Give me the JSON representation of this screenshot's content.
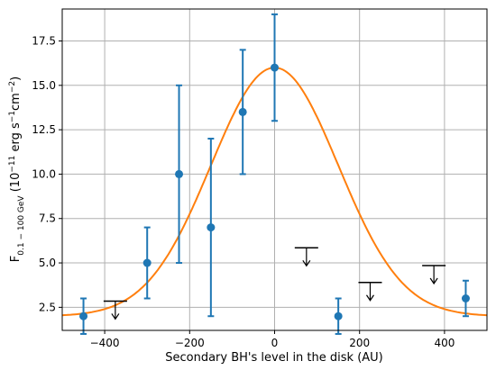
{
  "chart_data": {
    "type": "scatter",
    "title": "",
    "xlabel": "Secondary BH's level in the disk (AU)",
    "ylabel": {
      "main": "F",
      "sub": "0.1 − 100 GeV",
      "unit_prefix": " (10",
      "unit_exp": "−11",
      "unit_mid": " erg s",
      "unit_exp2": "−1",
      "unit_mid2": "cm",
      "unit_exp3": "−2",
      "unit_suffix": ")"
    },
    "xlim": [
      -500,
      500
    ],
    "ylim": [
      1.2,
      19.3
    ],
    "grid": true,
    "xticks": [
      -400,
      -200,
      0,
      200,
      400
    ],
    "xtick_labels": [
      "−400",
      "−200",
      "0",
      "200",
      "400"
    ],
    "yticks": [
      2.5,
      5.0,
      7.5,
      10.0,
      12.5,
      15.0,
      17.5
    ],
    "ytick_labels": [
      "2.5",
      "5.0",
      "7.5",
      "10.0",
      "12.5",
      "15.0",
      "17.5"
    ],
    "colors": {
      "points": "#1f77b4",
      "fit": "#ff7f0e",
      "limits": "#000000",
      "grid": "#b0b0b0"
    },
    "series": [
      {
        "kind": "errorbar",
        "points": [
          {
            "x": -450,
            "y": 2.0,
            "yerr_low": 1.0,
            "yerr_high": 1.0
          },
          {
            "x": -300,
            "y": 5.0,
            "yerr_low": 2.0,
            "yerr_high": 2.0
          },
          {
            "x": -225,
            "y": 10.0,
            "yerr_low": 5.0,
            "yerr_high": 5.0
          },
          {
            "x": -150,
            "y": 7.0,
            "yerr_low": 5.0,
            "yerr_high": 5.0
          },
          {
            "x": -75,
            "y": 13.5,
            "yerr_low": 3.5,
            "yerr_high": 3.5
          },
          {
            "x": 0,
            "y": 16.0,
            "yerr_low": 3.0,
            "yerr_high": 3.0
          },
          {
            "x": 150,
            "y": 2.0,
            "yerr_low": 1.0,
            "yerr_high": 1.0
          },
          {
            "x": 450,
            "y": 3.0,
            "yerr_low": 1.0,
            "yerr_high": 1.0
          }
        ]
      },
      {
        "kind": "upper_limit",
        "points": [
          {
            "x": -375,
            "y": 2.85
          },
          {
            "x": 75,
            "y": 5.85
          },
          {
            "x": 225,
            "y": 3.9
          },
          {
            "x": 375,
            "y": 4.85
          }
        ]
      },
      {
        "kind": "gaussian_fit",
        "amplitude": 14.0,
        "mean": 0,
        "sigma": 150,
        "offset": 2.0
      }
    ]
  }
}
